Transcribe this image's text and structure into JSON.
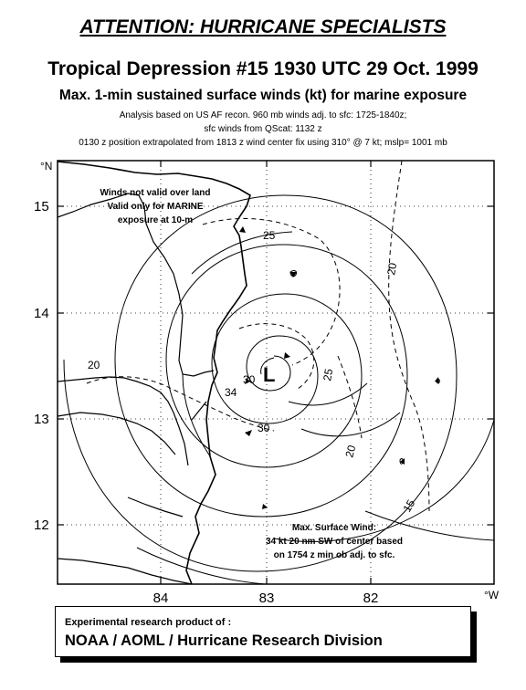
{
  "header": {
    "attention": "ATTENTION: HURRICANE SPECIALISTS",
    "title": "Tropical Depression #15 1930 UTC 29 Oct. 1999",
    "subtitle": "Max. 1-min sustained surface winds (kt) for marine exposure",
    "note_line1": "Analysis based on US AF recon. 960 mb winds adj. to sfc:  1725-1840z;",
    "note_line2": "sfc winds from QScat:  1132 z",
    "note_line3": "0130 z position extrapolated from  1813 z wind center fix using  310° @ 7 kt; mslp= 1001 mb"
  },
  "map": {
    "lat_unit": "°N",
    "lon_unit": "°W",
    "lat_ticks": [
      "15",
      "14",
      "13",
      "12"
    ],
    "lon_ticks": [
      "84",
      "83",
      "82"
    ],
    "center_label": "L",
    "contour_labels": [
      "25",
      "20",
      "25",
      "20",
      "30",
      "34",
      "30",
      "20",
      "15"
    ],
    "land_note": [
      "Winds not valid over land",
      "Valid only for MARINE",
      "exposure at 10-m"
    ],
    "max_wind_note": [
      "Max. Surface Wind:",
      "34 kt 20 nm SW of center based",
      "on 1754 z min ob adj. to sfc."
    ]
  },
  "footer": {
    "line1": "Experimental research product of :",
    "line2": "NOAA / AOML / Hurricane Research Division"
  }
}
